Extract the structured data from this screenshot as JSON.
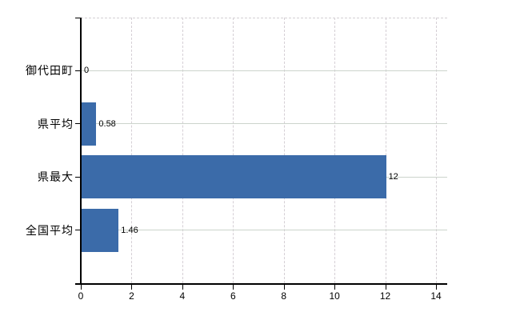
{
  "chart_data": {
    "type": "bar",
    "orientation": "horizontal",
    "title": "",
    "categories": [
      "御代田町",
      "県平均",
      "県最大",
      "全国平均"
    ],
    "values": [
      0,
      0.58,
      12,
      1.46
    ],
    "value_labels": [
      "0",
      "0.58",
      "12",
      "1.46"
    ],
    "x_ticks": [
      0,
      2,
      4,
      6,
      8,
      10,
      12,
      14
    ],
    "x_tick_labels": [
      "0",
      "2",
      "4",
      "6",
      "8",
      "10",
      "12",
      "14"
    ],
    "xlim": [
      0,
      14
    ],
    "legend": null,
    "grid": {
      "horizontal_style": "solid",
      "vertical_style": "dashed"
    },
    "colors": {
      "bar": "#3b6ba9",
      "horizontal_grid": "#ccd4cc",
      "vertical_grid": "#d5cfd5",
      "axis": "#000000",
      "text": "#000000",
      "background": "#ffffff"
    }
  }
}
